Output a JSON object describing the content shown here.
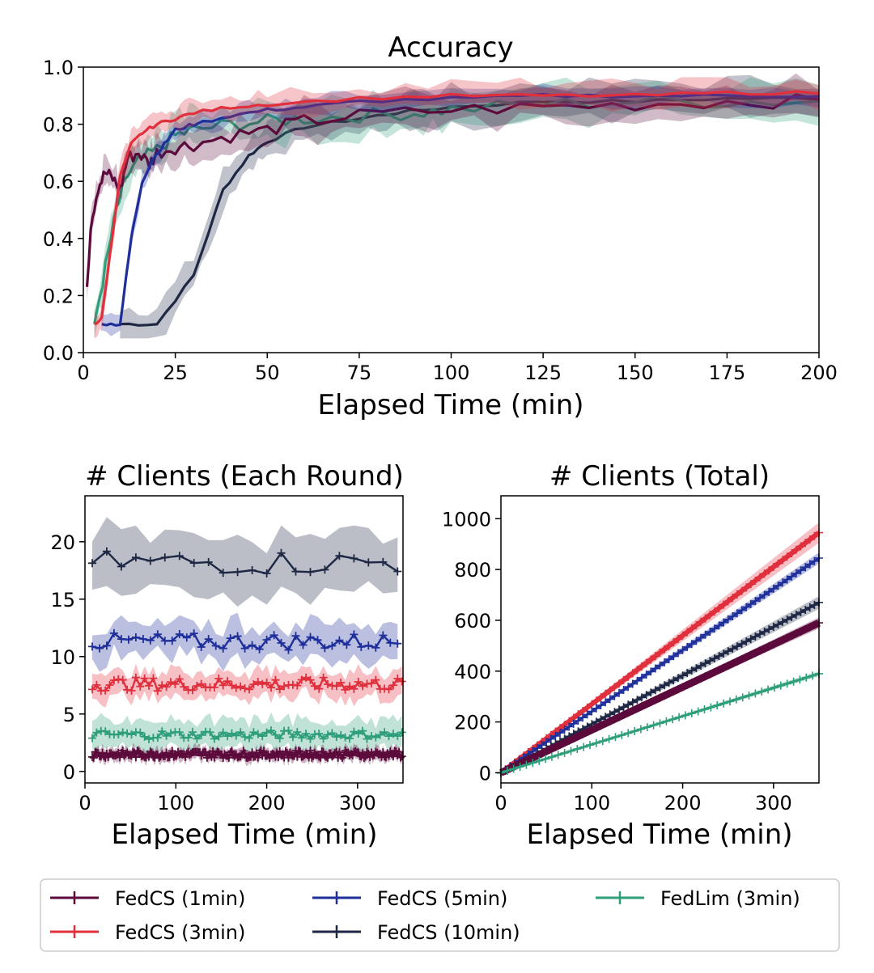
{
  "chart_data": [
    {
      "type": "line",
      "id": "accuracy",
      "title": "Accuracy",
      "xlabel": "Elapsed Time (min)",
      "ylabel": "",
      "xlim": [
        0,
        200
      ],
      "ylim": [
        0,
        1
      ],
      "xticks": [
        0,
        25,
        50,
        75,
        100,
        125,
        150,
        175,
        200
      ],
      "yticks": [
        "0.0",
        "0.2",
        "0.4",
        "0.6",
        "0.8",
        "1.0"
      ],
      "series": [
        {
          "name": "FedCS (1min)",
          "x": [
            1,
            2,
            4,
            6,
            8,
            10,
            12,
            15,
            18,
            20,
            25,
            30,
            40,
            50,
            60,
            75,
            100,
            125,
            150,
            175,
            200
          ],
          "y": [
            0.23,
            0.45,
            0.58,
            0.63,
            0.61,
            0.57,
            0.68,
            0.7,
            0.66,
            0.7,
            0.72,
            0.73,
            0.76,
            0.78,
            0.81,
            0.83,
            0.85,
            0.86,
            0.87,
            0.88,
            0.88
          ],
          "band": 0.05
        },
        {
          "name": "FedCS (3min)",
          "x": [
            3,
            5,
            8,
            10,
            13,
            16,
            20,
            25,
            30,
            40,
            50,
            75,
            100,
            125,
            150,
            175,
            200
          ],
          "y": [
            0.1,
            0.12,
            0.42,
            0.62,
            0.73,
            0.77,
            0.8,
            0.82,
            0.84,
            0.86,
            0.87,
            0.89,
            0.9,
            0.9,
            0.9,
            0.91,
            0.91
          ],
          "band": 0.04
        },
        {
          "name": "FedCS (5min)",
          "x": [
            5,
            10,
            13,
            16,
            19,
            22,
            25,
            30,
            40,
            50,
            60,
            75,
            100,
            125,
            150,
            175,
            200
          ],
          "y": [
            0.1,
            0.1,
            0.4,
            0.6,
            0.68,
            0.73,
            0.78,
            0.8,
            0.83,
            0.85,
            0.86,
            0.88,
            0.89,
            0.9,
            0.9,
            0.9,
            0.9
          ],
          "band": 0.03
        },
        {
          "name": "FedCS (10min)",
          "x": [
            10,
            20,
            30,
            38,
            45,
            50,
            60,
            75,
            85,
            100,
            125,
            150,
            175,
            200
          ],
          "y": [
            0.1,
            0.1,
            0.27,
            0.57,
            0.69,
            0.74,
            0.79,
            0.82,
            0.84,
            0.86,
            0.88,
            0.88,
            0.89,
            0.89
          ],
          "band": 0.06
        },
        {
          "name": "FedLim (3min)",
          "x": [
            3,
            6,
            9,
            12,
            15,
            20,
            25,
            30,
            40,
            50,
            60,
            75,
            90,
            100,
            125,
            150,
            175,
            200
          ],
          "y": [
            0.1,
            0.3,
            0.5,
            0.62,
            0.67,
            0.71,
            0.76,
            0.78,
            0.8,
            0.81,
            0.82,
            0.83,
            0.84,
            0.85,
            0.87,
            0.88,
            0.88,
            0.88
          ],
          "band": 0.06
        }
      ]
    },
    {
      "type": "line",
      "id": "clients_each_round",
      "title": "# Clients (Each Round)",
      "xlabel": "Elapsed Time (min)",
      "ylabel": "",
      "xlim": [
        0,
        350
      ],
      "ylim": [
        -1,
        24
      ],
      "xticks": [
        0,
        100,
        200,
        300
      ],
      "yticks": [
        0,
        5,
        10,
        15,
        20
      ],
      "series": [
        {
          "name": "FedCS (1min)",
          "mean": 1.5,
          "band": 0.6,
          "step": 1
        },
        {
          "name": "FedCS (3min)",
          "mean": 7.6,
          "band": 1.2,
          "step": 3
        },
        {
          "name": "FedCS (5min)",
          "mean": 11.3,
          "band": 1.6,
          "step": 5
        },
        {
          "name": "FedCS (10min)",
          "mean": 18.2,
          "band": 2.6,
          "step": 10
        },
        {
          "name": "FedLim (3min)",
          "mean": 3.2,
          "band": 1.3,
          "step": 3
        }
      ]
    },
    {
      "type": "line",
      "id": "clients_total",
      "title": "# Clients (Total)",
      "xlabel": "Elapsed Time (min)",
      "ylabel": "",
      "xlim": [
        0,
        350
      ],
      "ylim": [
        -40,
        1090
      ],
      "xticks": [
        0,
        100,
        200,
        300
      ],
      "yticks": [
        0,
        200,
        400,
        600,
        800,
        1000
      ],
      "series": [
        {
          "name": "FedCS (1min)",
          "end": 590,
          "band": 22
        },
        {
          "name": "FedCS (3min)",
          "end": 945,
          "band": 40
        },
        {
          "name": "FedCS (5min)",
          "end": 845,
          "band": 22
        },
        {
          "name": "FedCS (10min)",
          "end": 670,
          "band": 25
        },
        {
          "name": "FedLim (3min)",
          "end": 390,
          "band": 10
        }
      ]
    }
  ],
  "legend": {
    "position": "bottom",
    "items": [
      {
        "label": "FedCS (1min)",
        "color": "#5c0a3c"
      },
      {
        "label": "FedCS (5min)",
        "color": "#1f2f9a"
      },
      {
        "label": "FedLim (3min)",
        "color": "#2f9e7a"
      },
      {
        "label": "FedCS (3min)",
        "color": "#e0303e"
      },
      {
        "label": "FedCS (10min)",
        "color": "#1e2844"
      }
    ]
  },
  "colors": {
    "FedCS (1min)": "#5c0a3c",
    "FedCS (3min)": "#e0303e",
    "FedCS (5min)": "#1f2f9a",
    "FedCS (10min)": "#1e2844",
    "FedLim (3min)": "#2f9e7a"
  }
}
